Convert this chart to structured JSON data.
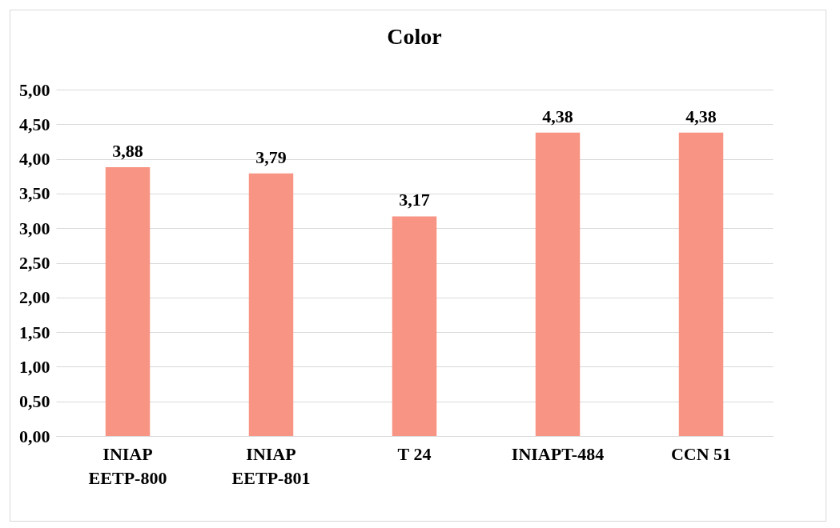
{
  "chart_data": {
    "type": "bar",
    "title": "Color",
    "categories": [
      "INIAP\nEETP-800",
      "INIAP\nEETP-801",
      "T 24",
      "INIAPT-484",
      "CCN 51"
    ],
    "values": [
      3.88,
      3.79,
      3.17,
      4.38,
      4.38
    ],
    "value_labels": [
      "3,88",
      "3,79",
      "3,17",
      "4,38",
      "4,38"
    ],
    "color": "#f79483",
    "ylim": [
      0,
      5
    ],
    "yticks": [
      {
        "value": 0,
        "label": "0,00"
      },
      {
        "value": 0.5,
        "label": "0,50"
      },
      {
        "value": 1,
        "label": "1,00"
      },
      {
        "value": 1.5,
        "label": "1,50"
      },
      {
        "value": 2,
        "label": "2,00"
      },
      {
        "value": 2.5,
        "label": "2,50"
      },
      {
        "value": 3,
        "label": "3,00"
      },
      {
        "value": 3.5,
        "label": "3,50"
      },
      {
        "value": 4,
        "label": "4,00"
      },
      {
        "value": 4.5,
        "label": "4,50"
      },
      {
        "value": 5,
        "label": "5,00"
      }
    ],
    "grid": "y"
  }
}
